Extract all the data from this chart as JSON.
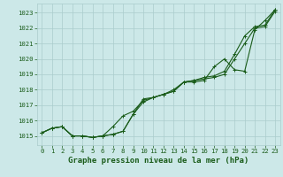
{
  "background_color": "#cce8e8",
  "plot_bg_color": "#cce8e8",
  "grid_color": "#aacccc",
  "line_color": "#1a5c1a",
  "title": "Graphe pression niveau de la mer (hPa)",
  "title_fontsize": 6.5,
  "tick_fontsize": 5.2,
  "ylim": [
    1014.4,
    1023.6
  ],
  "xlim": [
    -0.5,
    23.5
  ],
  "yticks": [
    1015,
    1016,
    1017,
    1018,
    1019,
    1020,
    1021,
    1022,
    1023
  ],
  "xticks": [
    0,
    1,
    2,
    3,
    4,
    5,
    6,
    7,
    8,
    9,
    10,
    11,
    12,
    13,
    14,
    15,
    16,
    17,
    18,
    19,
    20,
    21,
    22,
    23
  ],
  "series": [
    [
      1015.2,
      1015.5,
      1015.6,
      1015.0,
      1015.0,
      1014.9,
      1015.0,
      1015.1,
      1015.3,
      1016.4,
      1017.4,
      1017.5,
      1017.7,
      1017.9,
      1018.5,
      1018.6,
      1018.7,
      1018.8,
      1019.0,
      1020.0,
      1021.0,
      1022.0,
      1022.1,
      1023.1
    ],
    [
      1015.2,
      1015.5,
      1015.6,
      1015.0,
      1015.0,
      1014.9,
      1015.0,
      1015.1,
      1015.3,
      1016.4,
      1017.2,
      1017.5,
      1017.7,
      1017.9,
      1018.5,
      1018.6,
      1018.8,
      1018.9,
      1019.2,
      1020.3,
      1021.5,
      1022.1,
      1022.2,
      1023.2
    ],
    [
      1015.2,
      1015.5,
      1015.6,
      1015.0,
      1015.0,
      1014.9,
      1015.0,
      1015.6,
      1016.3,
      1016.6,
      1017.3,
      1017.5,
      1017.7,
      1018.0,
      1018.5,
      1018.5,
      1018.6,
      1019.5,
      1020.0,
      1019.3,
      1019.2,
      1021.9,
      1022.5,
      1023.2
    ]
  ]
}
